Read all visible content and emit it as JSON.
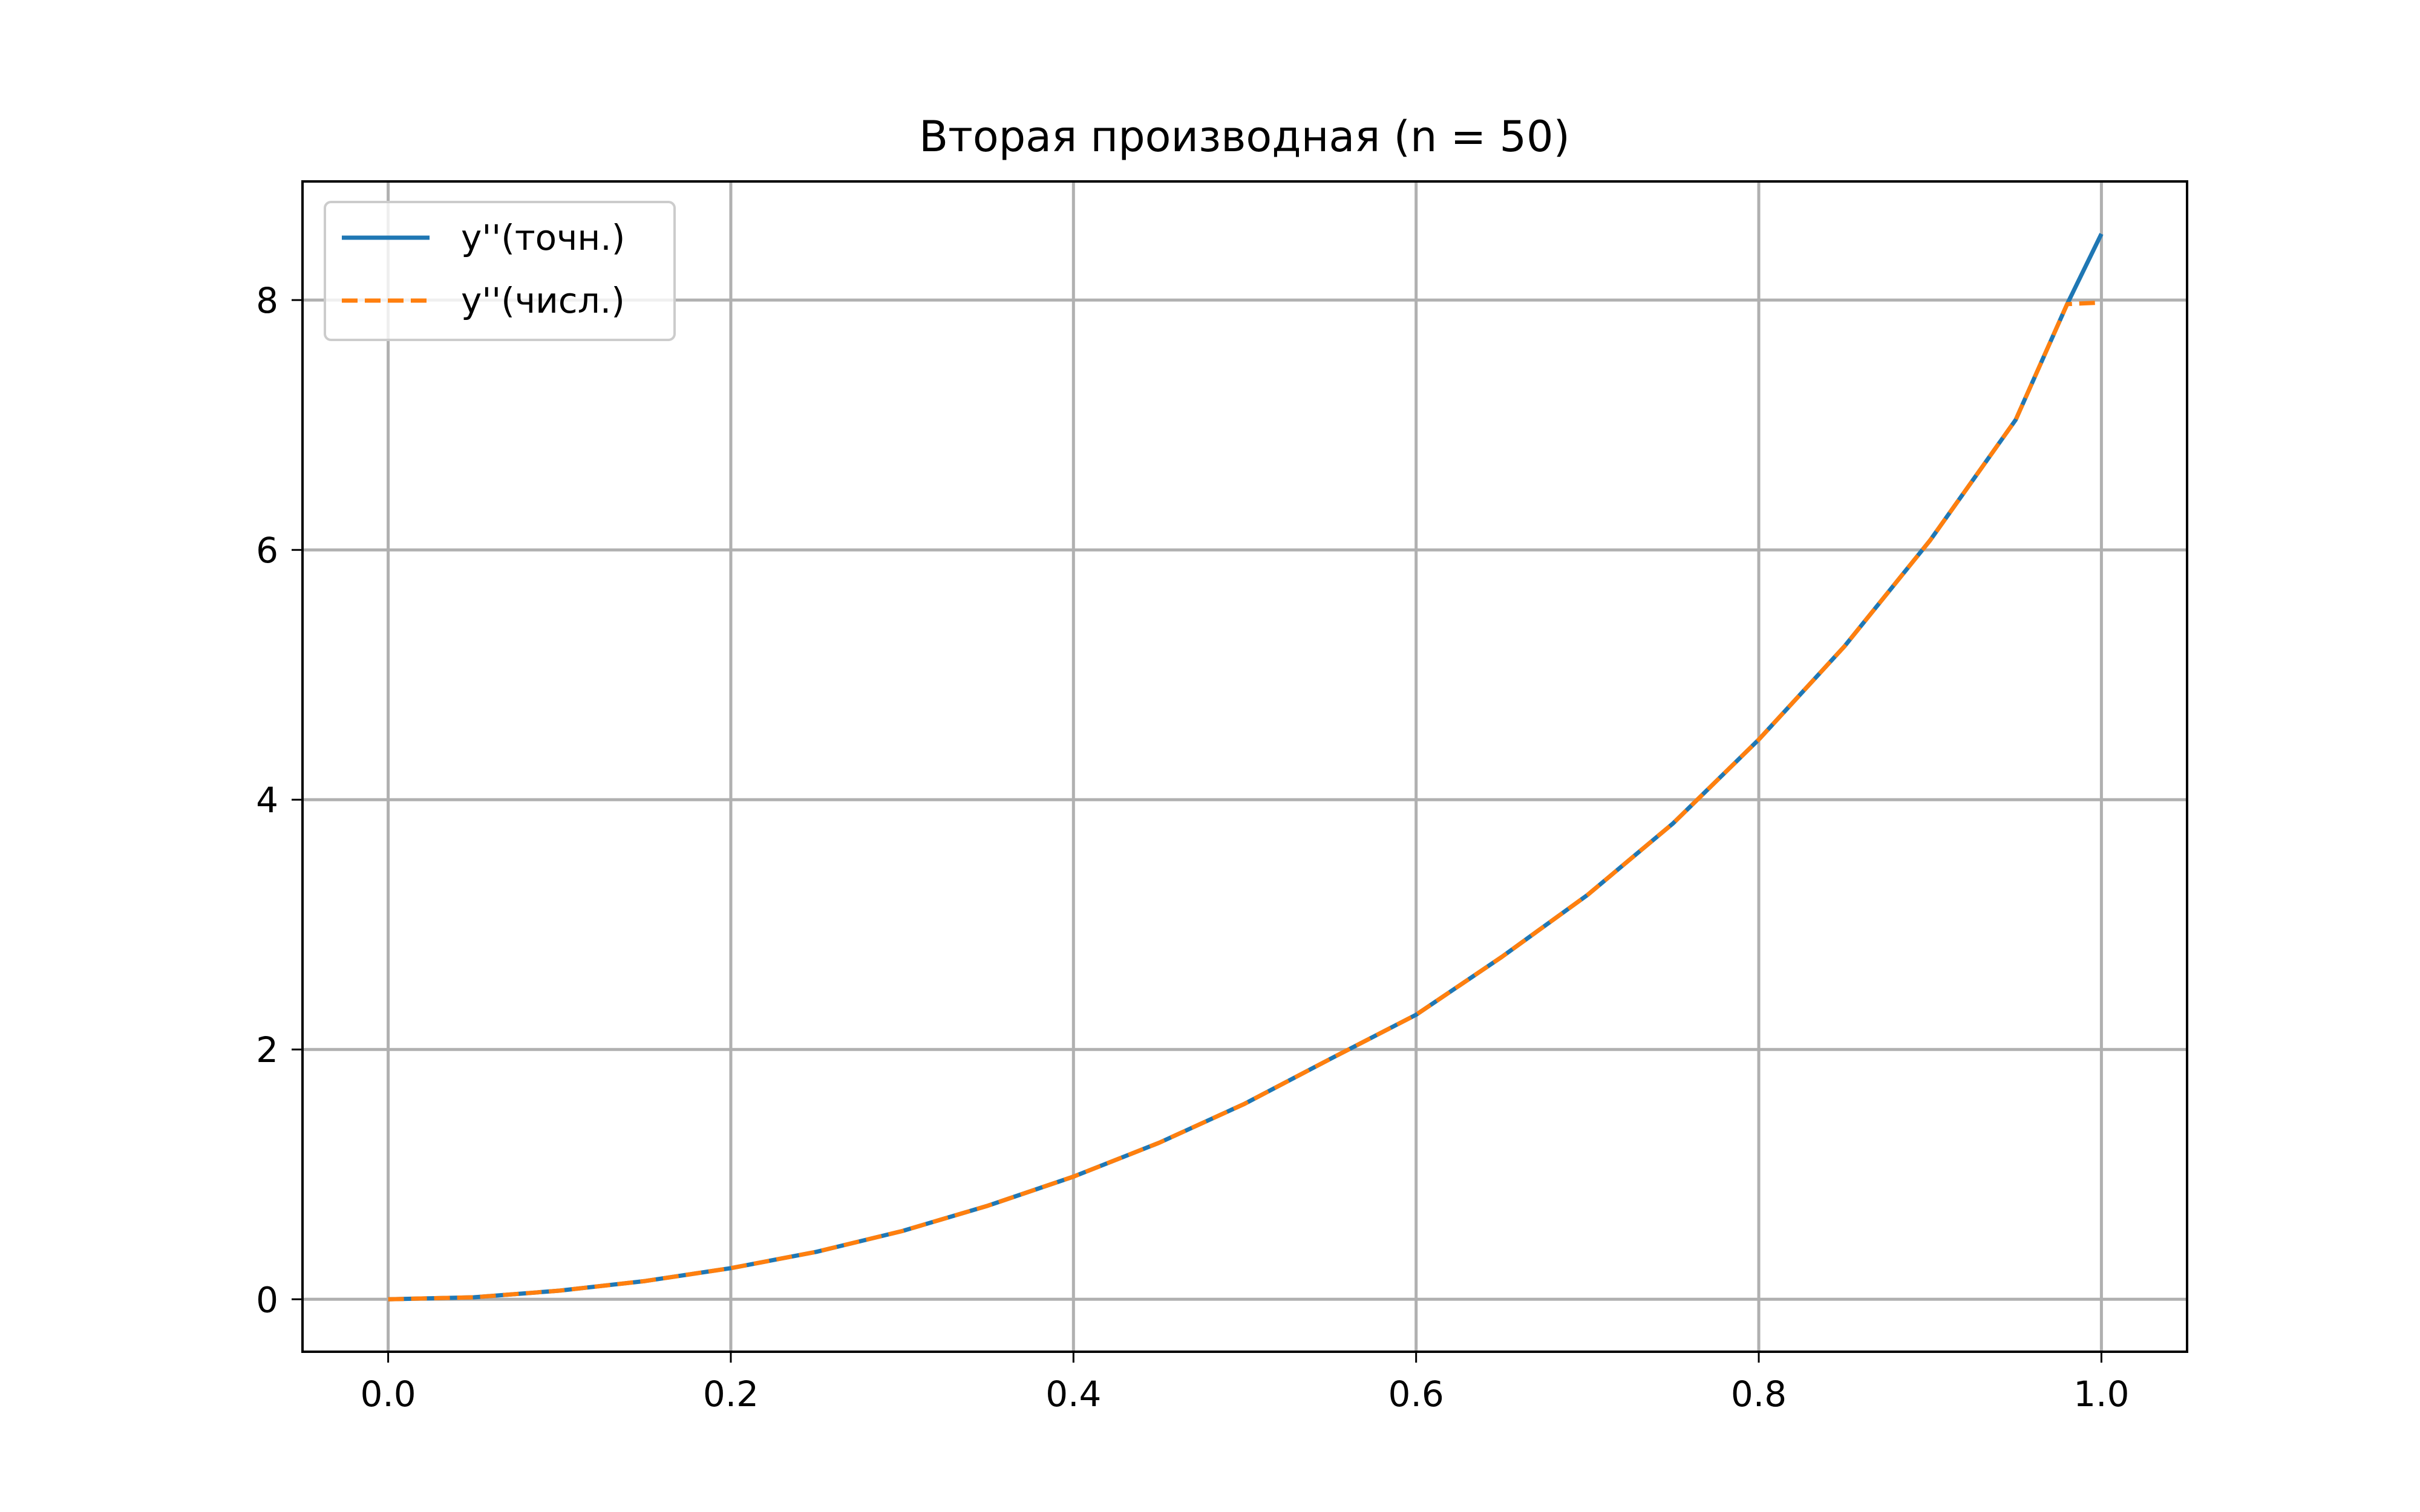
{
  "chart_data": {
    "type": "line",
    "title": "Вторая производная (n = 50)",
    "xlabel": "",
    "ylabel": "",
    "xlim": [
      -0.05,
      1.05
    ],
    "ylim": [
      -0.42,
      8.95
    ],
    "xticks": [
      0.0,
      0.2,
      0.4,
      0.6,
      0.8,
      1.0
    ],
    "xtick_labels": [
      "0.0",
      "0.2",
      "0.4",
      "0.6",
      "0.8",
      "1.0"
    ],
    "yticks": [
      0,
      2,
      4,
      6,
      8
    ],
    "ytick_labels": [
      "0",
      "2",
      "4",
      "6",
      "8"
    ],
    "grid": true,
    "legend_position": "top-left",
    "x": [
      0.0,
      0.05,
      0.1,
      0.15,
      0.2,
      0.25,
      0.3,
      0.35,
      0.4,
      0.45,
      0.5,
      0.55,
      0.6,
      0.65,
      0.7,
      0.75,
      0.8,
      0.85,
      0.9,
      0.95,
      0.98,
      1.0
    ],
    "series": [
      {
        "name": "y''(точн.)",
        "color": "#1f77b4",
        "style": "solid",
        "values": [
          0.0,
          0.016,
          0.069,
          0.146,
          0.249,
          0.38,
          0.546,
          0.749,
          0.982,
          1.253,
          1.566,
          1.925,
          2.278,
          2.741,
          3.237,
          3.811,
          4.481,
          5.227,
          6.076,
          7.042,
          7.968,
          8.53
        ]
      },
      {
        "name": "y''(числ.)",
        "color": "#ff7f0e",
        "style": "dashed",
        "values": [
          0.0,
          0.016,
          0.069,
          0.146,
          0.249,
          0.38,
          0.546,
          0.749,
          0.982,
          1.253,
          1.566,
          1.925,
          2.278,
          2.741,
          3.237,
          3.811,
          4.481,
          5.227,
          6.076,
          7.042,
          7.968,
          7.98
        ]
      }
    ]
  }
}
